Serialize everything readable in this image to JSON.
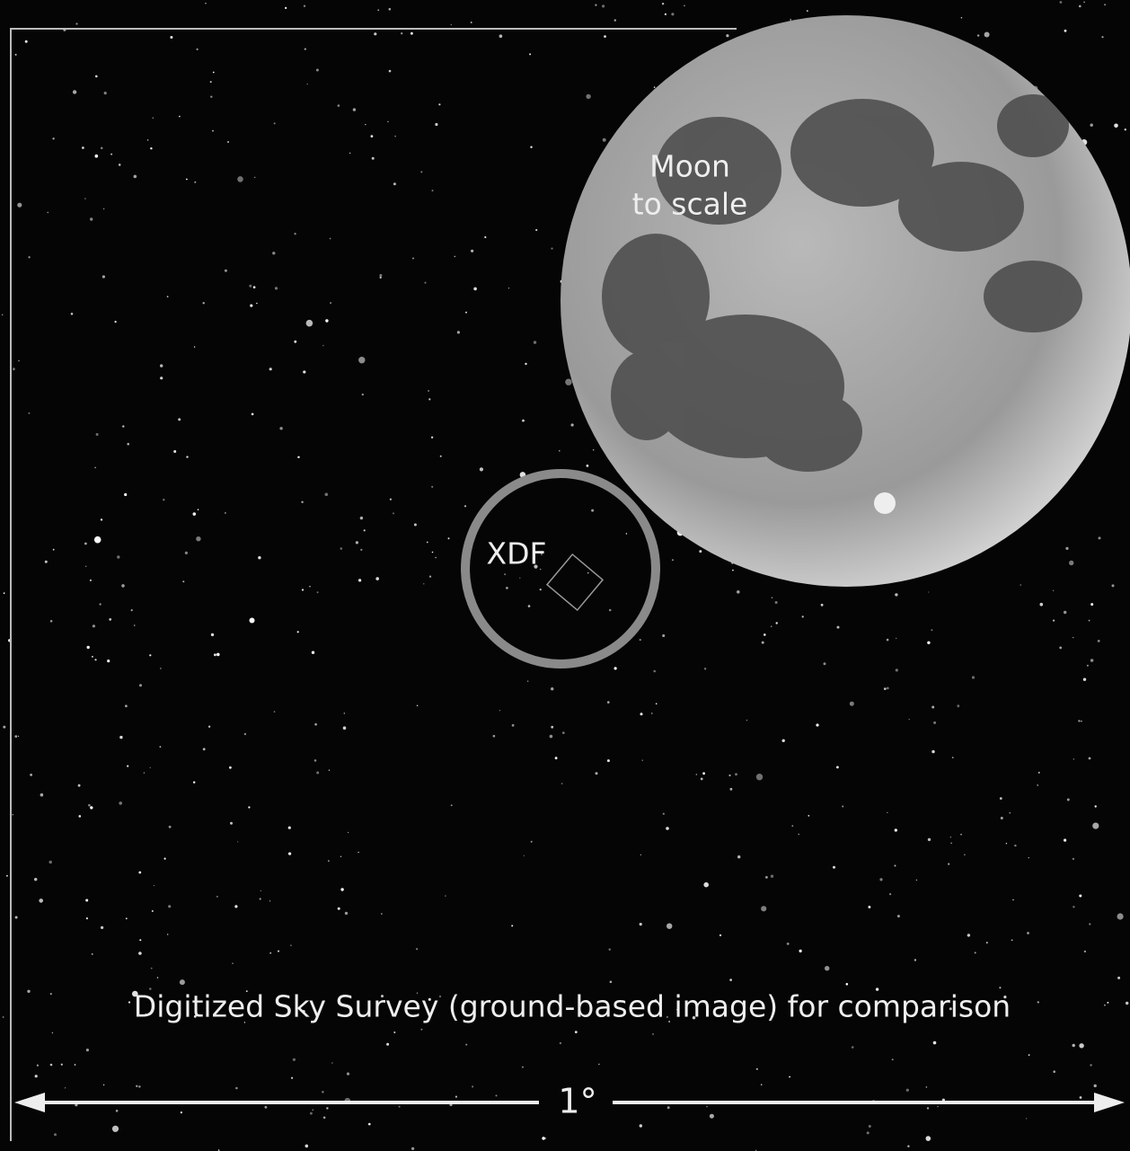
{
  "moon_label": [
    "Moon",
    "to scale"
  ],
  "xdf_label": "XDF",
  "caption": "Digitized Sky Survey (ground-based image) for comparison",
  "scale_label": "1°"
}
